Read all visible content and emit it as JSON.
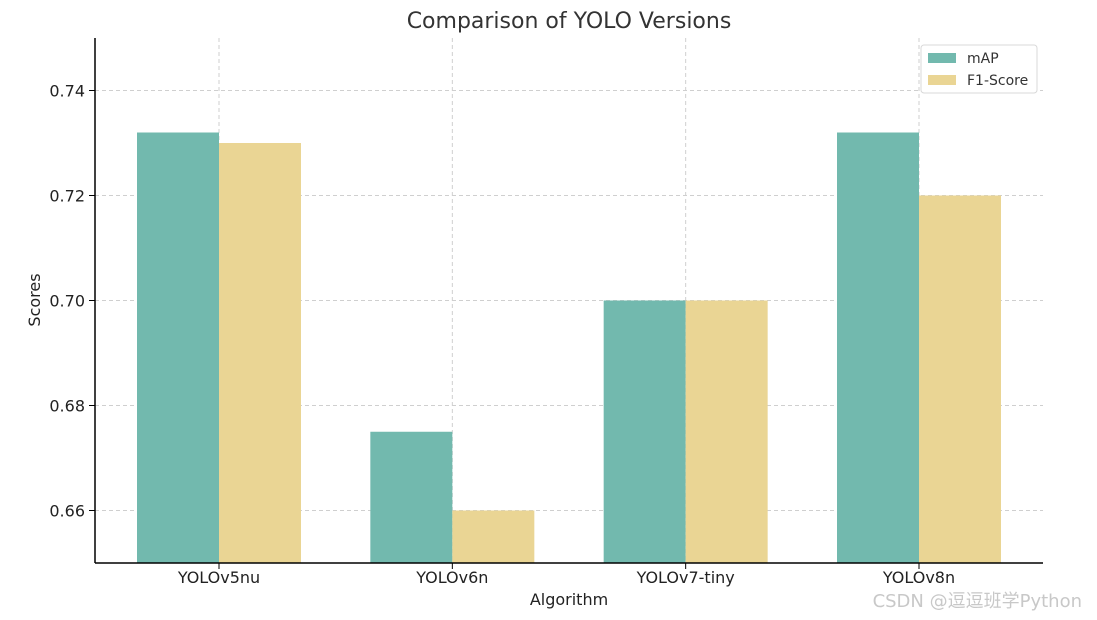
{
  "chart_data": {
    "type": "bar",
    "title": "Comparison of YOLO Versions",
    "xlabel": "Algorithm",
    "ylabel": "Scores",
    "categories": [
      "YOLOv5nu",
      "YOLOv6n",
      "YOLOv7-tiny",
      "YOLOv8n"
    ],
    "series": [
      {
        "name": "mAP",
        "color": "#72b9ae",
        "values": [
          0.732,
          0.675,
          0.7,
          0.732
        ]
      },
      {
        "name": "F1-Score",
        "color": "#ead594",
        "values": [
          0.73,
          0.66,
          0.7,
          0.72
        ]
      }
    ],
    "ylim": [
      0.65,
      0.75
    ],
    "yticks": [
      0.66,
      0.68,
      0.7,
      0.72,
      0.74
    ],
    "ytick_labels": [
      "0.66",
      "0.68",
      "0.70",
      "0.72",
      "0.74"
    ],
    "grid": true,
    "legend_position": "top-right"
  },
  "watermark": "CSDN @逗逗班学Python"
}
